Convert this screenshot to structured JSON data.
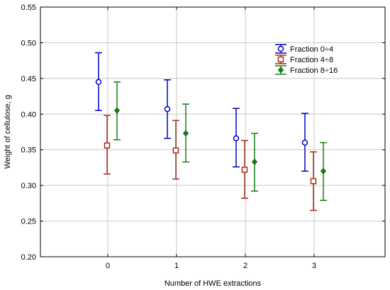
{
  "chart_data": {
    "type": "scatter",
    "xlabel": "Number of HWE extractions",
    "ylabel": "Weight of cellulose, g",
    "categories": [
      "0",
      "1",
      "2",
      "3"
    ],
    "ylim": [
      0.2,
      0.55
    ],
    "yticks": [
      "0.20",
      "0.25",
      "0.30",
      "0.35",
      "0.40",
      "0.45",
      "0.50",
      "0.55"
    ],
    "grid": true,
    "legend_position": "top-right",
    "series": [
      {
        "name": "Fraction 0÷4",
        "color": "#0000cc",
        "marker": "circle",
        "values": [
          0.445,
          0.407,
          0.366,
          0.36
        ],
        "lower": [
          0.405,
          0.366,
          0.326,
          0.32
        ],
        "upper": [
          0.486,
          0.448,
          0.408,
          0.401
        ]
      },
      {
        "name": "Fraction 4÷8",
        "color": "#a0301a",
        "marker": "square",
        "values": [
          0.356,
          0.349,
          0.322,
          0.306
        ],
        "lower": [
          0.316,
          0.309,
          0.282,
          0.265
        ],
        "upper": [
          0.398,
          0.391,
          0.363,
          0.347
        ]
      },
      {
        "name": "Fraction 8÷16",
        "color": "#1a7a1a",
        "marker": "diamond",
        "values": [
          0.405,
          0.373,
          0.333,
          0.32
        ],
        "lower": [
          0.364,
          0.333,
          0.292,
          0.279
        ],
        "upper": [
          0.445,
          0.414,
          0.373,
          0.36
        ]
      }
    ]
  }
}
